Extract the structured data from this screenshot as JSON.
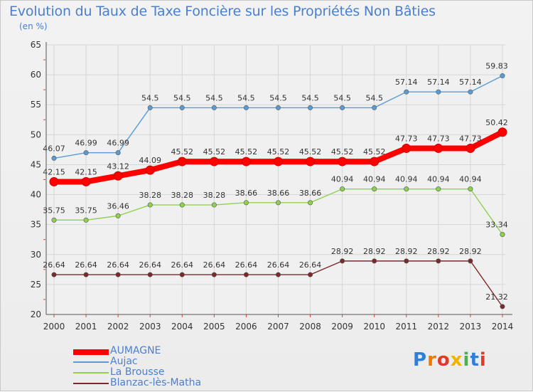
{
  "chart_data": {
    "type": "line",
    "title": "Evolution du Taux de Taxe Foncière sur les Propriétés Non Bâties",
    "subtitle": "(en %)",
    "categories": [
      "2000",
      "2001",
      "2002",
      "2003",
      "2004",
      "2005",
      "2006",
      "2007",
      "2008",
      "2009",
      "2010",
      "2011",
      "2012",
      "2013",
      "2014"
    ],
    "ylim": [
      20,
      65
    ],
    "yticks": [
      "20",
      "25",
      "30",
      "35",
      "40",
      "45",
      "50",
      "55",
      "60",
      "65"
    ],
    "series": [
      {
        "name": "Aujac",
        "color": "#5b9bd5",
        "values": [
          46.07,
          46.99,
          46.99,
          54.5,
          54.5,
          54.5,
          54.5,
          54.5,
          54.5,
          54.5,
          54.5,
          57.14,
          57.14,
          57.14,
          59.83
        ],
        "labels": [
          "46.07",
          "46.99",
          "46.99",
          "54.5",
          "54.5",
          "54.5",
          "54.5",
          "54.5",
          "54.5",
          "54.5",
          "54.5",
          "57.14",
          "57.14",
          "57.14",
          "59.83"
        ]
      },
      {
        "name": "La Brousse",
        "color": "#8fd04f",
        "values": [
          35.75,
          35.75,
          36.46,
          38.28,
          38.28,
          38.28,
          38.66,
          38.66,
          38.66,
          40.94,
          40.94,
          40.94,
          40.94,
          40.94,
          33.34
        ],
        "labels": [
          "35.75",
          "35.75",
          "36.46",
          "38.28",
          "38.28",
          "38.28",
          "38.66",
          "38.66",
          "38.66",
          "40.94",
          "40.94",
          "40.94",
          "40.94",
          "40.94",
          "33.34"
        ]
      },
      {
        "name": "Blanzac-lès-Matha",
        "color": "#7a2a2a",
        "values": [
          26.64,
          26.64,
          26.64,
          26.64,
          26.64,
          26.64,
          26.64,
          26.64,
          26.64,
          28.92,
          28.92,
          28.92,
          28.92,
          28.92,
          21.32
        ],
        "labels": [
          "26.64",
          "26.64",
          "26.64",
          "26.64",
          "26.64",
          "26.64",
          "26.64",
          "26.64",
          "26.64",
          "28.92",
          "28.92",
          "28.92",
          "28.92",
          "28.92",
          "21.32"
        ]
      },
      {
        "name": "AUMAGNE",
        "color": "#ff0000",
        "values": [
          42.15,
          42.15,
          43.12,
          44.09,
          45.52,
          45.52,
          45.52,
          45.52,
          45.52,
          45.52,
          45.52,
          47.73,
          47.73,
          47.73,
          50.42
        ],
        "labels": [
          "42.15",
          "42.15",
          "43.12",
          "44.09",
          "45.52",
          "45.52",
          "45.52",
          "45.52",
          "45.52",
          "45.52",
          "45.52",
          "47.73",
          "47.73",
          "47.73",
          "50.42"
        ]
      }
    ],
    "legend": [
      "AUMAGNE",
      "Aujac",
      "La Brousse",
      "Blanzac-lès-Matha"
    ],
    "legend_position": "bottom-left"
  },
  "logo": {
    "text": "Proxiti",
    "colors": [
      "#2e7fd8",
      "#f07a00",
      "#e23a2a",
      "#f0b400",
      "#4caf50",
      "#2e7fd8",
      "#e23a2a"
    ]
  }
}
